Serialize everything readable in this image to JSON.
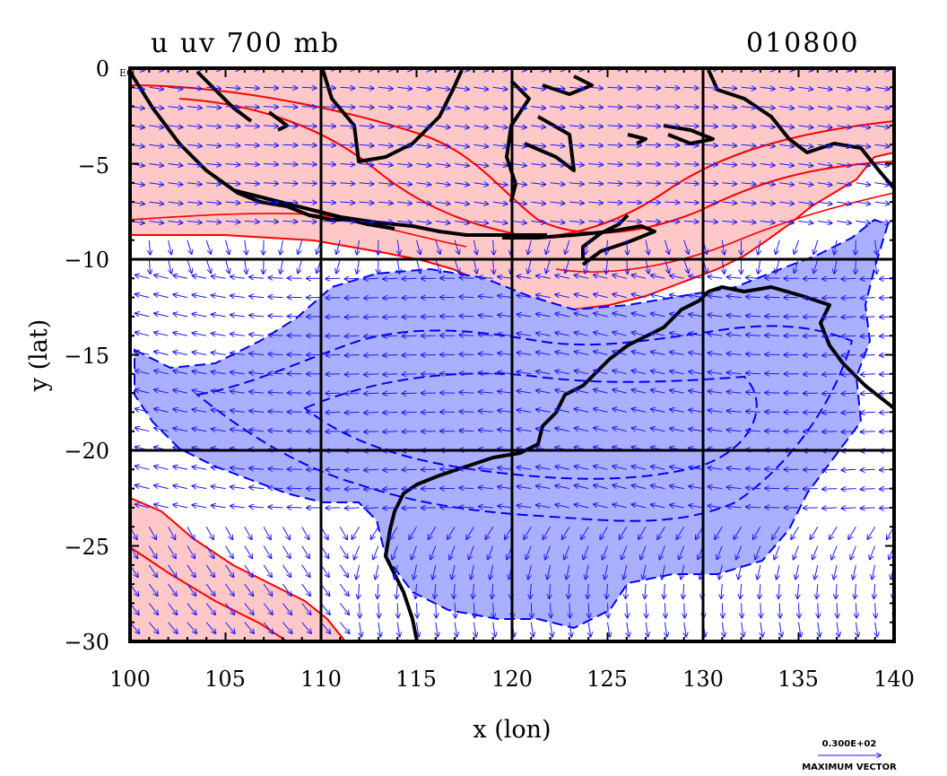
{
  "title": {
    "left": "u uv 700 mb",
    "right": "010800"
  },
  "chart_data": {
    "type": "contour-map",
    "xlabel": "x (lon)",
    "ylabel": "y (lat)",
    "xlim": [
      100,
      140
    ],
    "ylim": [
      -30,
      0
    ],
    "x_ticks": [
      "100",
      "105",
      "110",
      "115",
      "120",
      "125",
      "130",
      "135",
      "140"
    ],
    "y_ticks": [
      "0",
      "−5",
      "−10",
      "−15",
      "−20",
      "−25",
      "−30"
    ],
    "gridlines_lon": [
      110,
      120,
      130
    ],
    "gridlines_lat": [
      -10,
      -20
    ],
    "equator_label": "EQ",
    "vector_color": "#1a1aff",
    "positive_fill": "#ffc8c8",
    "positive_contour": "#ff0000",
    "negative_fill": "#aab0ff",
    "negative_contour": "#0000ff",
    "coast_color": "#000000",
    "reference_vector": {
      "value": "0.300E+02",
      "label": "MAXIMUM VECTOR"
    }
  }
}
